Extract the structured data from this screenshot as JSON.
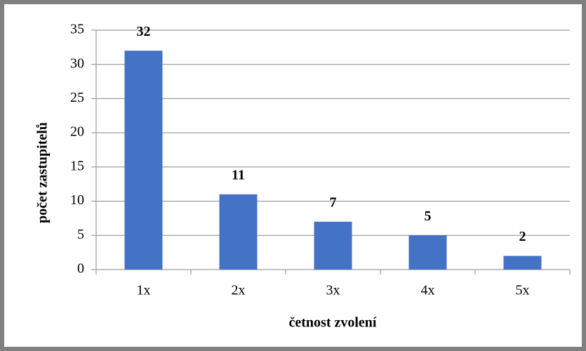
{
  "chart_data": {
    "type": "bar",
    "categories": [
      "1x",
      "2x",
      "3x",
      "4x",
      "5x"
    ],
    "values": [
      32,
      11,
      7,
      5,
      2
    ],
    "color": "#4472c4",
    "x_label": "četnost zvolení",
    "y_label": "počet zastupitelů",
    "ylim": [
      0,
      35
    ],
    "yticks": [
      0,
      5,
      10,
      15,
      20,
      25,
      30,
      35
    ],
    "grid": true
  }
}
